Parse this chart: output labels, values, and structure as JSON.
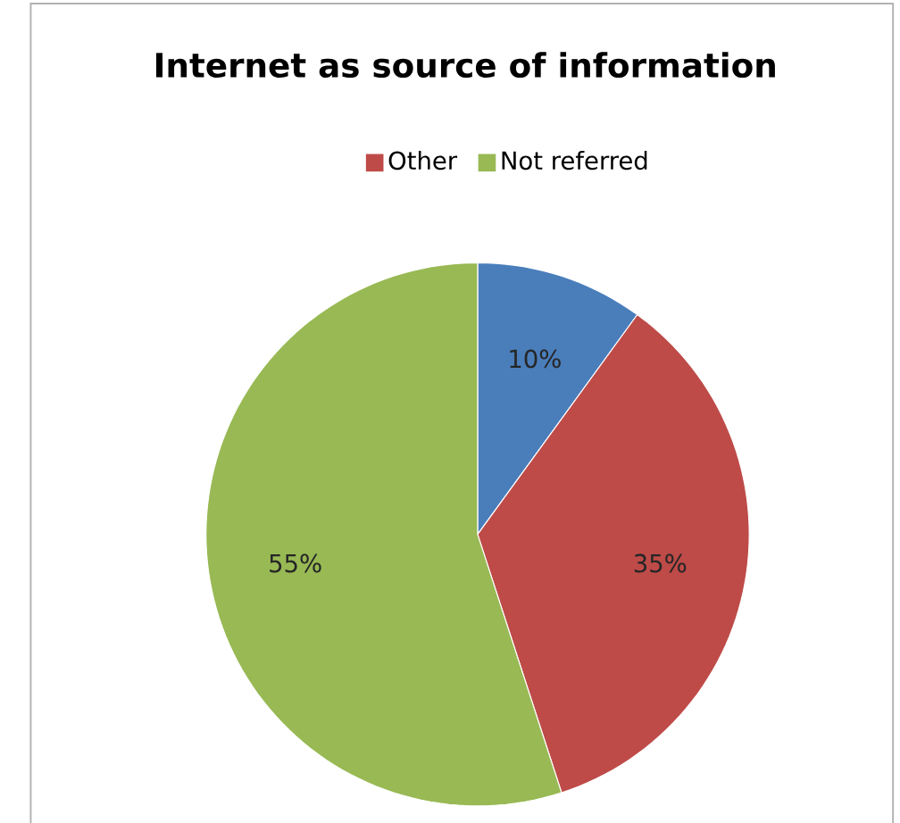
{
  "chart_data": {
    "type": "pie",
    "title": "Internet as source of information",
    "categories": [
      null,
      "Other",
      "Not referred"
    ],
    "values": [
      10,
      35,
      55
    ],
    "colors": [
      "#4a7ebb",
      "#be4b48",
      "#98b954"
    ],
    "value_labels": [
      "10%",
      "35%",
      "55%"
    ],
    "legend": "top"
  }
}
